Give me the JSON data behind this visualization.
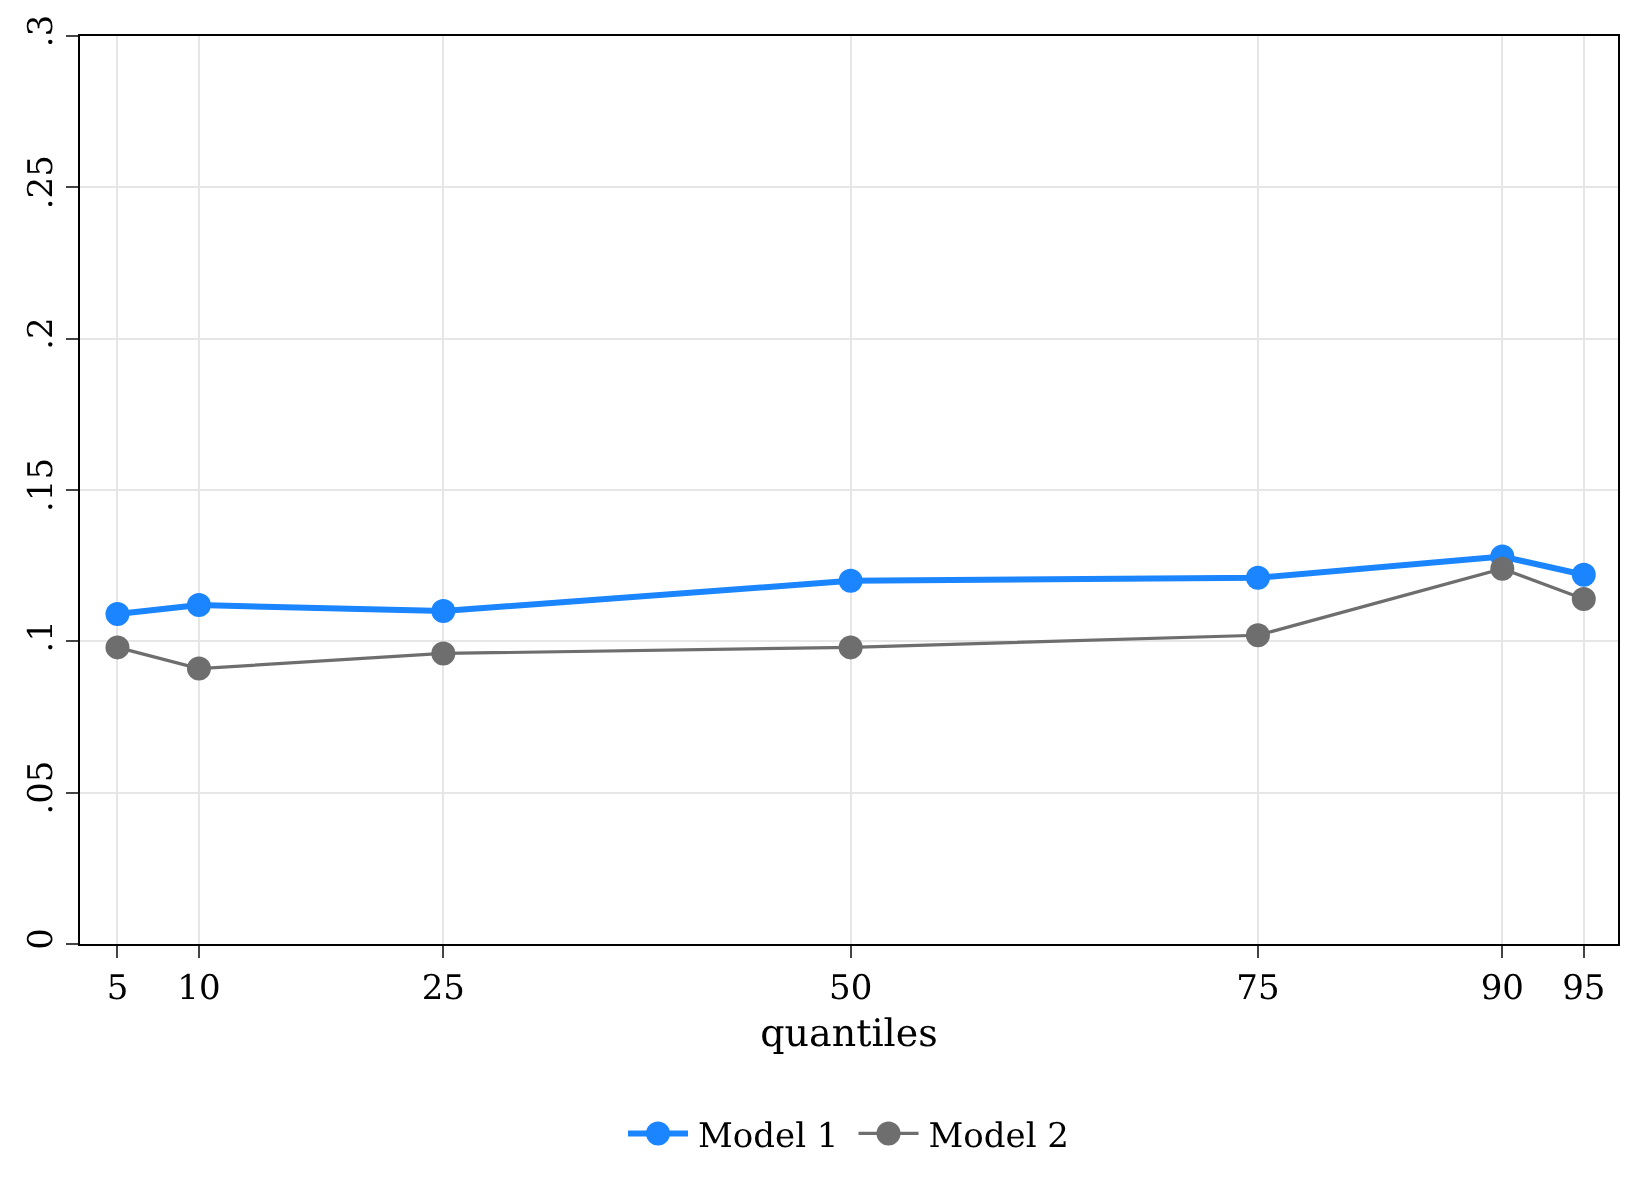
{
  "chart_data": {
    "type": "line",
    "xlabel": "quantiles",
    "x": [
      5,
      10,
      25,
      50,
      75,
      90,
      95
    ],
    "series": [
      {
        "name": "Model 1",
        "color": "#1a85ff",
        "values": [
          0.109,
          0.112,
          0.11,
          0.12,
          0.121,
          0.128,
          0.122
        ]
      },
      {
        "name": "Model 2",
        "color": "#6e6e6e",
        "values": [
          0.098,
          0.091,
          0.096,
          0.098,
          0.102,
          0.124,
          0.114
        ]
      }
    ],
    "xlim": [
      2.7,
      97.1
    ],
    "xticks": [
      5,
      10,
      25,
      50,
      75,
      90,
      95
    ],
    "ylim": [
      0,
      0.3
    ],
    "yticks": [
      {
        "value": 0,
        "label": "0"
      },
      {
        "value": 0.05,
        "label": ".05"
      },
      {
        "value": 0.1,
        "label": ".1"
      },
      {
        "value": 0.15,
        "label": ".15"
      },
      {
        "value": 0.2,
        "label": ".2"
      },
      {
        "value": 0.25,
        "label": ".25"
      },
      {
        "value": 0.3,
        "label": ".3"
      }
    ],
    "grid": true,
    "legend": "bottom",
    "marker": "circle",
    "line_style": "solid"
  }
}
